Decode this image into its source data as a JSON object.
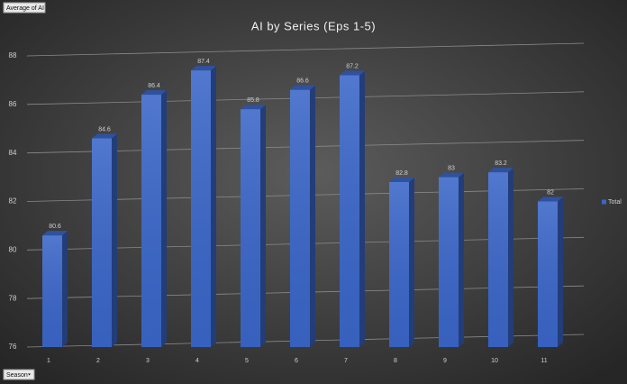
{
  "chart_data": {
    "type": "bar",
    "title": "AI by Series (Eps 1-5)",
    "categories": [
      "1",
      "2",
      "3",
      "4",
      "5",
      "6",
      "7",
      "8",
      "9",
      "10",
      "11"
    ],
    "series": [
      {
        "name": "Total",
        "color": "#3a66c8",
        "values": [
          80.6,
          84.6,
          86.4,
          87.4,
          85.8,
          86.6,
          87.2,
          82.8,
          83,
          83.2,
          82
        ]
      }
    ],
    "ylim": [
      76,
      88
    ],
    "yticks": [
      76,
      78,
      80,
      82,
      84,
      86,
      88
    ],
    "grid": true,
    "legend": "right",
    "value_field_button": "Average of AI",
    "axis_field_button": "Season"
  }
}
